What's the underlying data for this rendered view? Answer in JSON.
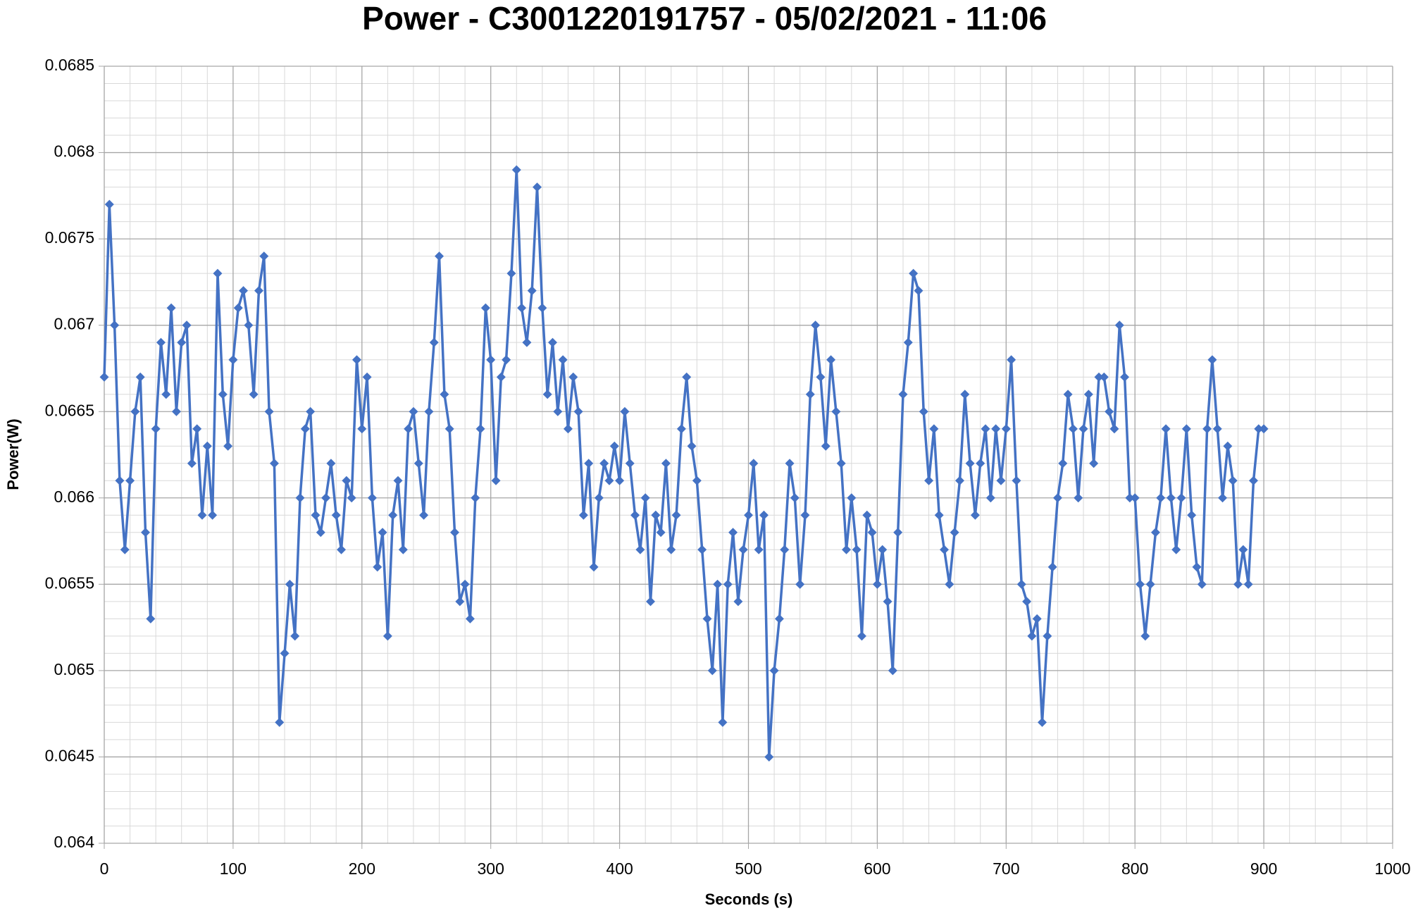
{
  "chart_data": {
    "type": "line",
    "title": "Power - C3001220191757 - 05/02/2021 - 11:06",
    "x_label": "Seconds (s)",
    "y_label": "Power(W)",
    "color": "#4472c4",
    "marker": "diamond",
    "grid": true,
    "xlim": [
      0,
      1000
    ],
    "xticks": [
      0,
      100,
      200,
      300,
      400,
      500,
      600,
      700,
      800,
      900,
      1000
    ],
    "ylim": [
      0.064,
      0.0685
    ],
    "yticks": [
      0.064,
      0.0645,
      0.065,
      0.0655,
      0.066,
      0.0665,
      0.067,
      0.0675,
      0.068,
      0.0685
    ],
    "xminorticks": [
      20,
      40,
      60,
      80,
      120,
      140,
      160,
      180,
      220,
      240,
      260,
      280,
      320,
      340,
      360,
      380,
      420,
      440,
      460,
      480,
      520,
      540,
      560,
      580,
      620,
      640,
      660,
      680,
      720,
      740,
      760,
      780,
      820,
      840,
      860,
      880,
      920,
      940,
      960,
      980
    ],
    "yminorticks": [
      0.0641,
      0.0642,
      0.0643,
      0.0644,
      0.0646,
      0.0647,
      0.0648,
      0.0649,
      0.0651,
      0.0652,
      0.0653,
      0.0654,
      0.0656,
      0.0657,
      0.0658,
      0.0659,
      0.0661,
      0.0662,
      0.0663,
      0.0664,
      0.0666,
      0.0667,
      0.0668,
      0.0669,
      0.0671,
      0.0672,
      0.0673,
      0.0674,
      0.0676,
      0.0677,
      0.0678,
      0.0679,
      0.0681,
      0.0682,
      0.0683,
      0.0684
    ],
    "x": [
      0,
      4,
      8,
      12,
      16,
      20,
      24,
      28,
      32,
      36,
      40,
      44,
      48,
      52,
      56,
      60,
      64,
      68,
      72,
      76,
      80,
      84,
      88,
      92,
      96,
      100,
      104,
      108,
      112,
      116,
      120,
      124,
      128,
      132,
      136,
      140,
      144,
      148,
      152,
      156,
      160,
      164,
      168,
      172,
      176,
      180,
      184,
      188,
      192,
      196,
      200,
      204,
      208,
      212,
      216,
      220,
      224,
      228,
      232,
      236,
      240,
      244,
      248,
      252,
      256,
      260,
      264,
      268,
      272,
      276,
      280,
      284,
      288,
      292,
      296,
      300,
      304,
      308,
      312,
      316,
      320,
      324,
      328,
      332,
      336,
      340,
      344,
      348,
      352,
      356,
      360,
      364,
      368,
      372,
      376,
      380,
      384,
      388,
      392,
      396,
      400,
      404,
      408,
      412,
      416,
      420,
      424,
      428,
      432,
      436,
      440,
      444,
      448,
      452,
      456,
      460,
      464,
      468,
      472,
      476,
      480,
      484,
      488,
      492,
      496,
      500,
      504,
      508,
      512,
      516,
      520,
      524,
      528,
      532,
      536,
      540,
      544,
      548,
      552,
      556,
      560,
      564,
      568,
      572,
      576,
      580,
      584,
      588,
      592,
      596,
      600,
      604,
      608,
      612,
      616,
      620,
      624,
      628,
      632,
      636,
      640,
      644,
      648,
      652,
      656,
      660,
      664,
      668,
      672,
      676,
      680,
      684,
      688,
      692,
      696,
      700,
      704,
      708,
      712,
      716,
      720,
      724,
      728,
      732,
      736,
      740,
      744,
      748,
      752,
      756,
      760,
      764,
      768,
      772,
      776,
      780,
      784,
      788,
      792,
      796,
      800,
      804,
      808,
      812,
      816,
      820,
      824,
      828,
      832,
      836,
      840,
      844,
      848,
      852,
      856,
      860,
      864,
      868,
      872,
      876,
      880,
      884,
      888,
      892,
      896,
      900
    ],
    "values": [
      0.0667,
      0.0677,
      0.067,
      0.0661,
      0.0657,
      0.0661,
      0.0665,
      0.0667,
      0.0658,
      0.0653,
      0.0664,
      0.0669,
      0.0666,
      0.0671,
      0.0665,
      0.0669,
      0.067,
      0.0662,
      0.0664,
      0.0659,
      0.0663,
      0.0659,
      0.0673,
      0.0666,
      0.0663,
      0.0668,
      0.0671,
      0.0672,
      0.067,
      0.0666,
      0.0672,
      0.0674,
      0.0665,
      0.0662,
      0.0647,
      0.0651,
      0.0655,
      0.0652,
      0.066,
      0.0664,
      0.0665,
      0.0659,
      0.0658,
      0.066,
      0.0662,
      0.0659,
      0.0657,
      0.0661,
      0.066,
      0.0668,
      0.0664,
      0.0667,
      0.066,
      0.0656,
      0.0658,
      0.0652,
      0.0659,
      0.0661,
      0.0657,
      0.0664,
      0.0665,
      0.0662,
      0.0659,
      0.0665,
      0.0669,
      0.0674,
      0.0666,
      0.0664,
      0.0658,
      0.0654,
      0.0655,
      0.0653,
      0.066,
      0.0664,
      0.0671,
      0.0668,
      0.0661,
      0.0667,
      0.0668,
      0.0673,
      0.0679,
      0.0671,
      0.0669,
      0.0672,
      0.0678,
      0.0671,
      0.0666,
      0.0669,
      0.0665,
      0.0668,
      0.0664,
      0.0667,
      0.0665,
      0.0659,
      0.0662,
      0.0656,
      0.066,
      0.0662,
      0.0661,
      0.0663,
      0.0661,
      0.0665,
      0.0662,
      0.0659,
      0.0657,
      0.066,
      0.0654,
      0.0659,
      0.0658,
      0.0662,
      0.0657,
      0.0659,
      0.0664,
      0.0667,
      0.0663,
      0.0661,
      0.0657,
      0.0653,
      0.065,
      0.0655,
      0.0647,
      0.0655,
      0.0658,
      0.0654,
      0.0657,
      0.0659,
      0.0662,
      0.0657,
      0.0659,
      0.0645,
      0.065,
      0.0653,
      0.0657,
      0.0662,
      0.066,
      0.0655,
      0.0659,
      0.0666,
      0.067,
      0.0667,
      0.0663,
      0.0668,
      0.0665,
      0.0662,
      0.0657,
      0.066,
      0.0657,
      0.0652,
      0.0659,
      0.0658,
      0.0655,
      0.0657,
      0.0654,
      0.065,
      0.0658,
      0.0666,
      0.0669,
      0.0673,
      0.0672,
      0.0665,
      0.0661,
      0.0664,
      0.0659,
      0.0657,
      0.0655,
      0.0658,
      0.0661,
      0.0666,
      0.0662,
      0.0659,
      0.0662,
      0.0664,
      0.066,
      0.0664,
      0.0661,
      0.0664,
      0.0668,
      0.0661,
      0.0655,
      0.0654,
      0.0652,
      0.0653,
      0.0647,
      0.0652,
      0.0656,
      0.066,
      0.0662,
      0.0666,
      0.0664,
      0.066,
      0.0664,
      0.0666,
      0.0662,
      0.0667,
      0.0667,
      0.0665,
      0.0664,
      0.067,
      0.0667,
      0.066,
      0.066,
      0.0655,
      0.0652,
      0.0655,
      0.0658,
      0.066,
      0.0664,
      0.066,
      0.0657,
      0.066,
      0.0664,
      0.0659,
      0.0656,
      0.0655,
      0.0664,
      0.0668,
      0.0664,
      0.066,
      0.0663,
      0.0661,
      0.0655,
      0.0657,
      0.0655,
      0.0661,
      0.0664,
      0.0664
    ]
  }
}
